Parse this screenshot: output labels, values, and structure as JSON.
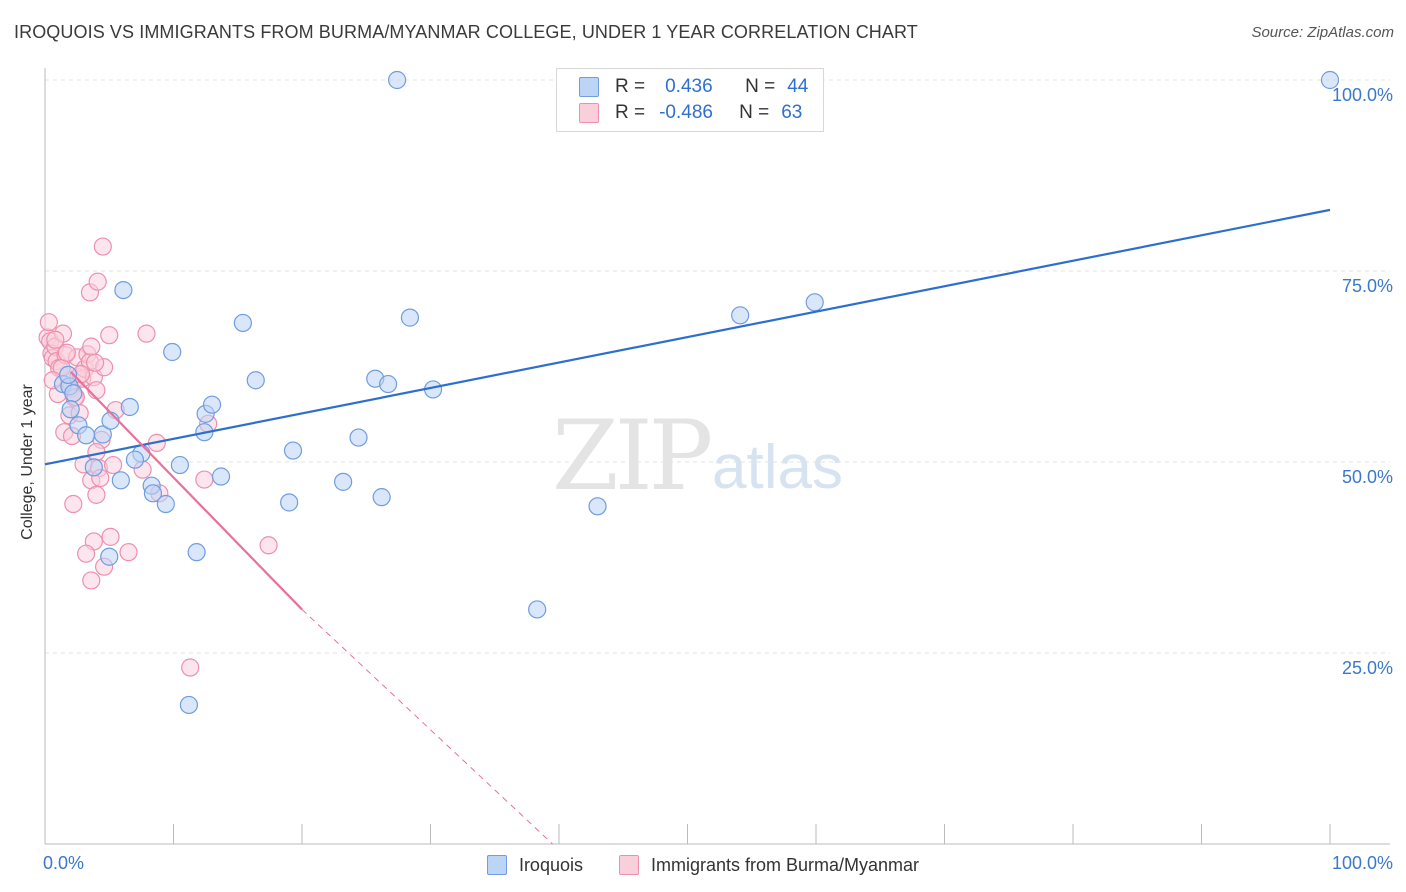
{
  "header": {
    "title": "IROQUOIS VS IMMIGRANTS FROM BURMA/MYANMAR COLLEGE, UNDER 1 YEAR CORRELATION CHART",
    "source": "Source: ZipAtlas.com"
  },
  "watermark": {
    "zip": "ZIP",
    "atlas": "atlas"
  },
  "legend": {
    "rows": [
      {
        "r_label": "R =",
        "r_value": "0.436",
        "n_label": "N =",
        "n_value": "44"
      },
      {
        "r_label": "R =",
        "r_value": "-0.486",
        "n_label": "N =",
        "n_value": "63"
      }
    ]
  },
  "bottom_legend": {
    "series1": "Iroquois",
    "series2": "Immigrants from Burma/Myanmar"
  },
  "colors": {
    "blue_fill": "#bcd4f5",
    "blue_stroke": "#6f9de0",
    "blue_line": "#2d6fcf",
    "pink_fill": "#f9cfdc",
    "pink_stroke": "#ee8fae",
    "pink_line": "#e8709a",
    "axis_label": "#3a78cc"
  },
  "chart_data": {
    "type": "scatter",
    "title": "IROQUOIS VS IMMIGRANTS FROM BURMA/MYANMAR COLLEGE, UNDER 1 YEAR CORRELATION CHART",
    "xlabel": "",
    "ylabel": "College, Under 1 year",
    "xlim": [
      0,
      100
    ],
    "ylim": [
      0,
      103
    ],
    "x_tick_labels": [
      "0.0%",
      "100.0%"
    ],
    "y_ticks": [
      25,
      50,
      75,
      100
    ],
    "y_tick_labels": [
      "25.0%",
      "50.0%",
      "75.0%",
      "100.0%"
    ],
    "grid": true,
    "series": [
      {
        "name": "Iroquois",
        "color": "#6f9de0",
        "points": [
          [
            27.4,
            100
          ],
          [
            100,
            100
          ],
          [
            6.1,
            72.5
          ],
          [
            15.4,
            68.2
          ],
          [
            28.4,
            68.9
          ],
          [
            54.1,
            69.2
          ],
          [
            59.9,
            70.9
          ],
          [
            9.9,
            64.4
          ],
          [
            16.4,
            60.7
          ],
          [
            25.7,
            60.9
          ],
          [
            26.7,
            60.2
          ],
          [
            30.2,
            59.5
          ],
          [
            1.4,
            60.2
          ],
          [
            1.9,
            59.9
          ],
          [
            2.2,
            59.0
          ],
          [
            2.0,
            56.9
          ],
          [
            2.6,
            54.8
          ],
          [
            3.2,
            53.5
          ],
          [
            4.5,
            53.6
          ],
          [
            5.1,
            55.4
          ],
          [
            6.6,
            57.2
          ],
          [
            12.5,
            56.3
          ],
          [
            13.0,
            57.5
          ],
          [
            12.4,
            53.9
          ],
          [
            7.5,
            51.1
          ],
          [
            7.0,
            50.3
          ],
          [
            3.8,
            49.3
          ],
          [
            5.9,
            47.6
          ],
          [
            8.3,
            46.9
          ],
          [
            8.4,
            45.9
          ],
          [
            9.4,
            44.5
          ],
          [
            10.5,
            49.6
          ],
          [
            13.7,
            48.1
          ],
          [
            19.3,
            51.5
          ],
          [
            24.4,
            53.2
          ],
          [
            23.2,
            47.4
          ],
          [
            19.0,
            44.7
          ],
          [
            26.2,
            45.4
          ],
          [
            43.0,
            44.2
          ],
          [
            5.0,
            37.6
          ],
          [
            11.8,
            38.2
          ],
          [
            38.3,
            30.7
          ],
          [
            11.2,
            18.2
          ],
          [
            1.8,
            61.4
          ]
        ]
      },
      {
        "name": "Immigrants from Burma/Myanmar",
        "color": "#ee8fae",
        "points": [
          [
            0.2,
            66.3
          ],
          [
            0.4,
            65.8
          ],
          [
            0.5,
            64.2
          ],
          [
            0.6,
            63.6
          ],
          [
            0.8,
            65.1
          ],
          [
            0.9,
            63.2
          ],
          [
            1.1,
            62.3
          ],
          [
            1.4,
            66.8
          ],
          [
            1.6,
            64.0
          ],
          [
            1.8,
            61.4
          ],
          [
            2.0,
            59.6
          ],
          [
            2.3,
            58.4
          ],
          [
            2.5,
            63.7
          ],
          [
            2.6,
            61.1
          ],
          [
            2.9,
            60.9
          ],
          [
            3.1,
            62.2
          ],
          [
            3.3,
            64.1
          ],
          [
            3.5,
            63.1
          ],
          [
            3.6,
            65.1
          ],
          [
            3.8,
            61.1
          ],
          [
            4.0,
            59.4
          ],
          [
            4.6,
            62.4
          ],
          [
            5.0,
            66.6
          ],
          [
            0.3,
            68.3
          ],
          [
            1.0,
            58.9
          ],
          [
            1.9,
            56.1
          ],
          [
            2.7,
            56.4
          ],
          [
            4.4,
            52.9
          ],
          [
            5.5,
            56.8
          ],
          [
            1.5,
            53.9
          ],
          [
            2.1,
            53.4
          ],
          [
            3.0,
            49.7
          ],
          [
            4.0,
            51.3
          ],
          [
            4.2,
            49.2
          ],
          [
            7.6,
            49.0
          ],
          [
            8.7,
            52.5
          ],
          [
            3.6,
            47.6
          ],
          [
            4.3,
            47.9
          ],
          [
            4.0,
            45.7
          ],
          [
            8.9,
            45.9
          ],
          [
            12.4,
            47.7
          ],
          [
            12.7,
            55.0
          ],
          [
            2.2,
            44.5
          ],
          [
            3.8,
            39.6
          ],
          [
            5.1,
            40.2
          ],
          [
            3.2,
            38.0
          ],
          [
            6.5,
            38.2
          ],
          [
            17.4,
            39.1
          ],
          [
            3.6,
            34.5
          ],
          [
            4.6,
            36.3
          ],
          [
            11.3,
            23.1
          ],
          [
            3.5,
            72.2
          ],
          [
            4.1,
            73.6
          ],
          [
            4.5,
            78.2
          ],
          [
            7.9,
            66.8
          ],
          [
            0.8,
            66.0
          ],
          [
            1.3,
            62.3
          ],
          [
            2.4,
            58.5
          ],
          [
            3.9,
            63.0
          ],
          [
            1.7,
            64.3
          ],
          [
            2.8,
            61.5
          ],
          [
            5.3,
            49.6
          ],
          [
            0.6,
            60.7
          ]
        ]
      }
    ],
    "trend_lines": [
      {
        "series": "Iroquois",
        "x": [
          0,
          100
        ],
        "y": [
          49.7,
          83.0
        ],
        "style": "solid"
      },
      {
        "series": "Immigrants from Burma/Myanmar",
        "x": [
          2.0,
          20.0
        ],
        "y": [
          61.8,
          30.7
        ],
        "style": "solid"
      },
      {
        "series": "Immigrants from Burma/Myanmar",
        "x": [
          20.0,
          39.5
        ],
        "y": [
          30.7,
          0
        ],
        "style": "dashed"
      }
    ]
  }
}
